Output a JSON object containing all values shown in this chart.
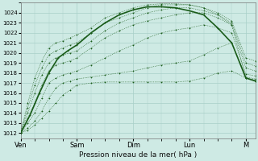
{
  "xlabel": "Pression niveau de la mer( hPa )",
  "bg_color": "#ceeae4",
  "grid_color": "#a8cfc8",
  "line_color": "#1a5c1a",
  "ylim": [
    1011.5,
    1025.0
  ],
  "yticks": [
    1012,
    1013,
    1014,
    1015,
    1016,
    1017,
    1018,
    1019,
    1020,
    1021,
    1022,
    1023,
    1024
  ],
  "day_labels": [
    "Ven",
    "Sam",
    "Dim",
    "Lun",
    "M"
  ],
  "day_positions": [
    0,
    24,
    48,
    72,
    96
  ],
  "xlim": [
    0,
    100
  ],
  "curves": [
    {
      "x": [
        0,
        3,
        6,
        9,
        12,
        15,
        18,
        21,
        24,
        30,
        36,
        42,
        48,
        54,
        60,
        66,
        72,
        78,
        84,
        90,
        96,
        100
      ],
      "y": [
        1012.0,
        1012.3,
        1012.8,
        1013.5,
        1014.2,
        1015.0,
        1015.8,
        1016.3,
        1016.8,
        1017.0,
        1017.1,
        1017.1,
        1017.1,
        1017.1,
        1017.1,
        1017.1,
        1017.2,
        1017.5,
        1018.0,
        1018.2,
        1017.5,
        1017.3
      ],
      "style": "dotted_marker",
      "lw": 0.5
    },
    {
      "x": [
        0,
        3,
        6,
        9,
        12,
        15,
        18,
        21,
        24,
        30,
        36,
        42,
        48,
        54,
        60,
        66,
        72,
        78,
        84,
        90,
        96,
        100
      ],
      "y": [
        1012.0,
        1012.5,
        1013.2,
        1014.2,
        1015.5,
        1016.5,
        1017.0,
        1017.2,
        1017.4,
        1017.6,
        1017.8,
        1018.0,
        1018.2,
        1018.5,
        1018.8,
        1019.0,
        1019.2,
        1019.8,
        1020.5,
        1021.0,
        1017.6,
        1017.4
      ],
      "style": "dotted_marker",
      "lw": 0.5
    },
    {
      "x": [
        0,
        3,
        6,
        9,
        12,
        15,
        18,
        21,
        24,
        30,
        36,
        42,
        48,
        54,
        60,
        66,
        72,
        78,
        84,
        90,
        96,
        100
      ],
      "y": [
        1012.0,
        1013.0,
        1014.0,
        1015.5,
        1017.0,
        1017.5,
        1017.8,
        1018.0,
        1018.2,
        1018.8,
        1019.5,
        1020.2,
        1020.8,
        1021.5,
        1022.0,
        1022.3,
        1022.5,
        1022.8,
        1022.5,
        1022.0,
        1017.9,
        1017.7
      ],
      "style": "dotted_marker",
      "lw": 0.5
    },
    {
      "x": [
        0,
        3,
        6,
        9,
        12,
        15,
        18,
        21,
        24,
        30,
        36,
        42,
        48,
        54,
        60,
        66,
        72,
        78,
        84,
        90,
        96,
        100
      ],
      "y": [
        1012.0,
        1013.5,
        1015.0,
        1016.8,
        1018.2,
        1018.8,
        1019.0,
        1019.2,
        1019.5,
        1020.5,
        1021.5,
        1022.2,
        1022.8,
        1023.2,
        1023.5,
        1023.8,
        1024.0,
        1024.0,
        1023.5,
        1022.8,
        1018.5,
        1018.2
      ],
      "style": "dotted_marker",
      "lw": 0.5
    },
    {
      "x": [
        0,
        3,
        6,
        9,
        12,
        15,
        18,
        21,
        24,
        30,
        36,
        42,
        48,
        54,
        60,
        66,
        72,
        78,
        84,
        90,
        96,
        100
      ],
      "y": [
        1012.0,
        1014.0,
        1016.0,
        1017.8,
        1019.0,
        1019.5,
        1019.8,
        1020.0,
        1020.2,
        1021.2,
        1022.2,
        1023.0,
        1023.5,
        1024.0,
        1024.3,
        1024.5,
        1024.5,
        1024.2,
        1023.8,
        1023.0,
        1019.0,
        1018.7
      ],
      "style": "dotted_marker",
      "lw": 0.5
    },
    {
      "x": [
        0,
        3,
        6,
        9,
        12,
        15,
        18,
        21,
        24,
        30,
        36,
        42,
        48,
        54,
        60,
        66,
        72,
        78,
        84,
        90,
        96,
        100
      ],
      "y": [
        1012.0,
        1014.5,
        1016.8,
        1018.5,
        1019.8,
        1020.2,
        1020.5,
        1020.8,
        1021.0,
        1022.0,
        1023.0,
        1023.5,
        1024.0,
        1024.5,
        1024.8,
        1024.8,
        1024.8,
        1024.5,
        1024.0,
        1023.2,
        1019.5,
        1019.2
      ],
      "style": "dotted_marker",
      "lw": 0.5
    },
    {
      "x": [
        0,
        3,
        6,
        9,
        12,
        15,
        18,
        21,
        24,
        30,
        36,
        42,
        48,
        54,
        60,
        66,
        72,
        78,
        84,
        90,
        96,
        100
      ],
      "y": [
        1012.0,
        1015.0,
        1017.5,
        1019.2,
        1020.5,
        1021.0,
        1021.2,
        1021.5,
        1021.8,
        1022.5,
        1023.5,
        1024.0,
        1024.5,
        1024.8,
        1024.9,
        1024.9,
        1024.8,
        1024.5,
        1023.8,
        1022.8,
        1017.5,
        1017.2
      ],
      "style": "dotted_marker",
      "lw": 0.5
    },
    {
      "x": [
        0,
        4,
        8,
        12,
        16,
        20,
        24,
        30,
        36,
        42,
        48,
        54,
        60,
        66,
        72,
        78,
        84,
        90,
        96,
        100
      ],
      "y": [
        1012.0,
        1013.8,
        1016.0,
        1018.0,
        1019.5,
        1020.2,
        1020.8,
        1022.0,
        1023.0,
        1023.8,
        1024.3,
        1024.6,
        1024.6,
        1024.5,
        1024.2,
        1023.8,
        1022.5,
        1021.0,
        1017.5,
        1017.2
      ],
      "style": "solid",
      "lw": 1.2
    }
  ]
}
